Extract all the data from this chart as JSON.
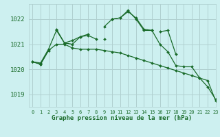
{
  "title": "Graphe pression niveau de la mer (hPa)",
  "bg_color": "#cdf0f0",
  "grid_color": "#b0d0d0",
  "line_color": "#1a6b2a",
  "ylim": [
    1018.5,
    1022.6
  ],
  "yticks": [
    1019,
    1020,
    1021,
    1022
  ],
  "xlim": [
    -0.5,
    23
  ],
  "xticks": [
    0,
    1,
    2,
    3,
    4,
    5,
    6,
    7,
    8,
    9,
    10,
    11,
    12,
    13,
    14,
    15,
    16,
    17,
    18,
    19,
    20,
    21,
    22,
    23
  ],
  "series": [
    [
      1020.3,
      1020.25,
      1020.8,
      1021.55,
      1021.05,
      1021.15,
      1021.3,
      1021.35,
      1021.2,
      null,
      1022.0,
      1022.05,
      1022.3,
      1022.05,
      1021.6,
      1021.55,
      null,
      null,
      null,
      null,
      null,
      null,
      null,
      null
    ],
    [
      null,
      null,
      null,
      1021.6,
      1021.05,
      1021.0,
      1021.3,
      1021.4,
      null,
      1021.2,
      null,
      null,
      null,
      null,
      null,
      null,
      1021.5,
      1021.55,
      1020.6,
      null,
      null,
      null,
      null,
      null
    ],
    [
      1020.3,
      1020.2,
      1020.75,
      null,
      null,
      null,
      null,
      null,
      null,
      1021.7,
      1022.0,
      1022.05,
      1022.35,
      1022.0,
      1021.55,
      1021.55,
      1021.0,
      1020.7,
      1020.15,
      1020.1,
      1020.1,
      1019.65,
      1019.3,
      1018.8
    ],
    [
      1020.3,
      1020.2,
      1020.75,
      1021.0,
      1021.0,
      1020.85,
      1020.8,
      1020.8,
      1020.8,
      1020.75,
      1020.7,
      1020.65,
      1020.55,
      1020.45,
      1020.35,
      1020.25,
      1020.15,
      1020.05,
      1019.95,
      1019.85,
      1019.75,
      1019.65,
      1019.55,
      1018.75
    ]
  ]
}
